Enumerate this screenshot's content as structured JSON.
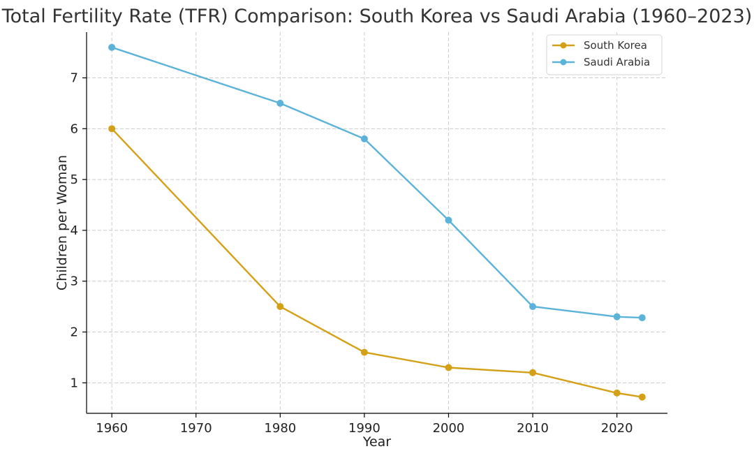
{
  "chart_data": {
    "type": "line",
    "title": "Total Fertility Rate (TFR) Comparison: South Korea vs Saudi Arabia (1960–2023)",
    "xlabel": "Year",
    "ylabel": "Children per Woman",
    "xlim": [
      1957,
      2026
    ],
    "ylim": [
      0.4,
      7.9
    ],
    "xticks": [
      1960,
      1970,
      1980,
      1990,
      2000,
      2010,
      2020
    ],
    "yticks": [
      1,
      2,
      3,
      4,
      5,
      6,
      7
    ],
    "grid": true,
    "legend_position": "top-right",
    "series": [
      {
        "name": "South Korea",
        "color": "#d4a017",
        "x": [
          1960,
          1980,
          1990,
          2000,
          2010,
          2020,
          2023
        ],
        "y": [
          6.0,
          2.5,
          1.6,
          1.3,
          1.2,
          0.8,
          0.72
        ]
      },
      {
        "name": "Saudi Arabia",
        "color": "#5cb3d9",
        "x": [
          1960,
          1980,
          1990,
          2000,
          2010,
          2020,
          2023
        ],
        "y": [
          7.6,
          6.5,
          5.8,
          4.2,
          2.5,
          2.3,
          2.28
        ]
      }
    ]
  }
}
